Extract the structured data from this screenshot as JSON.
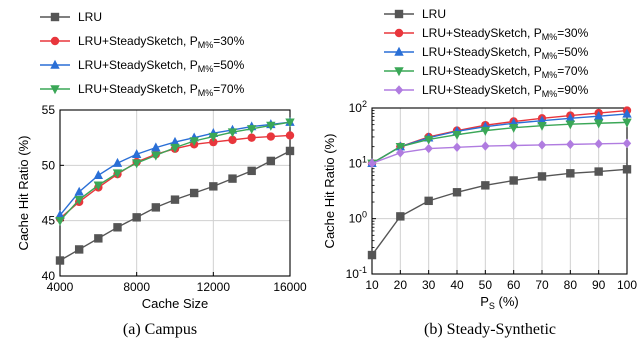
{
  "captions": [
    "(a)  Campus",
    "(b)  Steady-Synthetic"
  ],
  "chart_data": [
    {
      "type": "line",
      "caption": "(a)  Campus",
      "xlabel": "Cache Size",
      "ylabel": "Cache Hit Ratio (%)",
      "xlim": [
        4000,
        16000
      ],
      "ylim": [
        40,
        55
      ],
      "xscale": "linear",
      "yscale": "linear",
      "xticks": [
        4000,
        8000,
        12000,
        16000
      ],
      "xtick_labels": [
        "4000",
        "8000",
        "12000",
        "16000"
      ],
      "yticks": [
        40,
        45,
        50,
        55
      ],
      "ytick_labels": [
        "40",
        "45",
        "50",
        "55"
      ],
      "grid": true,
      "legend_position": "top-left, above plot",
      "x": [
        4000,
        5000,
        6000,
        7000,
        8000,
        9000,
        10000,
        11000,
        12000,
        13000,
        14000,
        15000,
        16000
      ],
      "series": [
        {
          "legend_main": "LRU",
          "legend_sub": "",
          "legend_tail": "",
          "color": "#555555",
          "marker": "square",
          "values": [
            41.4,
            42.4,
            43.4,
            44.4,
            45.3,
            46.2,
            46.9,
            47.5,
            48.1,
            48.8,
            49.5,
            50.4,
            51.3
          ]
        },
        {
          "legend_main": "LRU+SteadySketch, P",
          "legend_sub": "M%",
          "legend_tail": "=30%",
          "color": "#e8363c",
          "marker": "circle",
          "values": [
            45.2,
            46.7,
            48.0,
            49.2,
            50.3,
            51.0,
            51.5,
            51.9,
            52.1,
            52.3,
            52.5,
            52.6,
            52.7
          ]
        },
        {
          "legend_main": "LRU+SteadySketch, P",
          "legend_sub": "M%",
          "legend_tail": "=50%",
          "color": "#2a6fd6",
          "marker": "triangle-up",
          "values": [
            45.5,
            47.6,
            49.1,
            50.2,
            51.0,
            51.6,
            52.1,
            52.5,
            52.9,
            53.2,
            53.5,
            53.7,
            53.9
          ]
        },
        {
          "legend_main": "LRU+SteadySketch, P",
          "legend_sub": "M%",
          "legend_tail": "=70%",
          "color": "#3aa757",
          "marker": "triangle-down",
          "values": [
            45.0,
            46.9,
            48.2,
            49.3,
            50.2,
            50.9,
            51.6,
            52.2,
            52.6,
            53.0,
            53.3,
            53.6,
            53.9
          ]
        }
      ]
    },
    {
      "type": "line",
      "caption": "(b)  Steady-Synthetic",
      "xlabel_main": "P",
      "xlabel_sub": "S",
      "xlabel_tail": " (%)",
      "ylabel": "Cache Hit Ratio (%)",
      "xlim": [
        10,
        100
      ],
      "ylim": [
        0.1,
        100
      ],
      "xscale": "linear",
      "yscale": "log",
      "xticks": [
        10,
        20,
        30,
        40,
        50,
        60,
        70,
        80,
        90,
        100
      ],
      "xtick_labels": [
        "10",
        "20",
        "30",
        "40",
        "50",
        "60",
        "70",
        "80",
        "90",
        "100"
      ],
      "yticks": [
        0.1,
        1,
        10,
        100
      ],
      "ytick_base": [
        "10",
        "10",
        "10",
        "10"
      ],
      "ytick_exp": [
        "-1",
        "0",
        "1",
        "2"
      ],
      "grid": true,
      "legend_position": "top-left, above plot",
      "x": [
        10,
        20,
        30,
        40,
        50,
        60,
        70,
        80,
        90,
        100
      ],
      "series": [
        {
          "legend_main": "LRU",
          "legend_sub": "",
          "legend_tail": "",
          "color": "#555555",
          "marker": "square",
          "values": [
            0.22,
            1.1,
            2.1,
            3.0,
            4.0,
            4.9,
            5.8,
            6.6,
            7.1,
            7.8
          ]
        },
        {
          "legend_main": "LRU+SteadySketch, P",
          "legend_sub": "M%",
          "legend_tail": "=30%",
          "color": "#e8363c",
          "marker": "circle",
          "values": [
            10,
            20,
            30,
            39,
            49,
            57,
            65,
            73,
            81,
            90
          ]
        },
        {
          "legend_main": "LRU+SteadySketch, P",
          "legend_sub": "M%",
          "legend_tail": "=50%",
          "color": "#2a6fd6",
          "marker": "triangle-up",
          "values": [
            10,
            20,
            29,
            38,
            46,
            53,
            59,
            65,
            71,
            78
          ]
        },
        {
          "legend_main": "LRU+SteadySketch, P",
          "legend_sub": "M%",
          "legend_tail": "=70%",
          "color": "#3aa757",
          "marker": "triangle-down",
          "values": [
            10,
            20,
            27,
            33,
            39,
            44,
            48,
            51,
            53,
            55
          ]
        },
        {
          "legend_main": "LRU+SteadySketch, P",
          "legend_sub": "M%",
          "legend_tail": "=90%",
          "color": "#b07ce0",
          "marker": "diamond",
          "values": [
            10,
            15.5,
            18.5,
            19.5,
            20.5,
            21,
            21.5,
            22,
            22.5,
            23
          ]
        }
      ]
    }
  ]
}
